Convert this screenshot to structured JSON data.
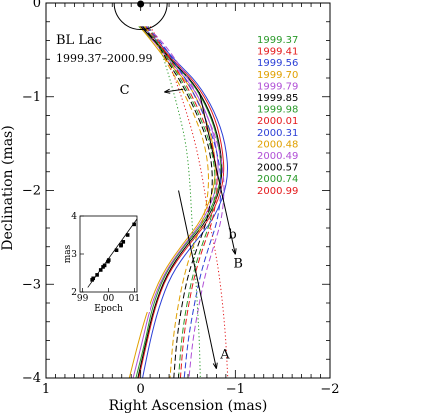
{
  "chart_data": {
    "type": "line",
    "title": "",
    "source_name": "BL Lac",
    "date_range": "1999.37–2000.99",
    "xlabel": "Right Ascension  (mas)",
    "ylabel": "Declination  (mas)",
    "xlim": [
      1,
      -2
    ],
    "ylim": [
      -4,
      0
    ],
    "x_ticks": [
      1,
      0,
      -1,
      -2
    ],
    "y_ticks": [
      0,
      -1,
      -2,
      -3,
      -4
    ],
    "grid": false,
    "legend_position": "top-right",
    "core_beam": {
      "x": 0,
      "y": 0,
      "radius": 0.28
    },
    "annotations": [
      {
        "label": "C",
        "x": 0.17,
        "y": -0.93
      },
      {
        "label": "b",
        "x": -0.97,
        "y": -2.47
      },
      {
        "label": "B",
        "x": -1.03,
        "y": -2.78
      },
      {
        "label": "A",
        "x": -0.89,
        "y": -3.75
      }
    ],
    "direction_lines": [
      {
        "name": "B",
        "from": [
          -0.62,
          -0.95
        ],
        "to": [
          -1.0,
          -2.68
        ]
      },
      {
        "name": "A",
        "from": [
          -0.4,
          -2.0
        ],
        "to": [
          -0.8,
          -3.9
        ]
      },
      {
        "name": "C",
        "from": [
          -0.45,
          -0.92
        ],
        "to": [
          -0.25,
          -0.95
        ]
      }
    ],
    "series": [
      {
        "name": "1999.37",
        "color": "#2a9a2a",
        "dash": "solid",
        "x": [
          0.02,
          -0.18,
          -0.35,
          -0.55,
          -0.72,
          -0.83,
          -0.86,
          -0.7,
          -0.45,
          -0.25,
          -0.12,
          -0.05,
          0.05
        ],
        "y": [
          -0.25,
          -0.45,
          -0.65,
          -0.85,
          -1.15,
          -1.5,
          -1.9,
          -2.3,
          -2.6,
          -2.9,
          -3.25,
          -3.6,
          -4.0
        ]
      },
      {
        "name": "1999.41",
        "color": "#e41a1c",
        "dash": "solid",
        "x": [
          0.0,
          -0.2,
          -0.38,
          -0.58,
          -0.76,
          -0.86,
          -0.89,
          -0.74,
          -0.49,
          -0.28,
          -0.15,
          -0.07,
          0.02
        ],
        "y": [
          -0.25,
          -0.45,
          -0.65,
          -0.85,
          -1.15,
          -1.5,
          -1.9,
          -2.3,
          -2.6,
          -2.9,
          -3.25,
          -3.6,
          -4.0
        ]
      },
      {
        "name": "1999.56",
        "color": "#2b3fd6",
        "dash": "solid",
        "x": [
          -0.02,
          -0.22,
          -0.4,
          -0.6,
          -0.78,
          -0.9,
          -0.93,
          -0.78,
          -0.53,
          -0.32,
          -0.19,
          -0.1,
          -0.02
        ],
        "y": [
          -0.25,
          -0.45,
          -0.65,
          -0.85,
          -1.15,
          -1.5,
          -1.9,
          -2.3,
          -2.6,
          -2.9,
          -3.25,
          -3.6,
          -4.0
        ]
      },
      {
        "name": "1999.70",
        "color": "#e0a000",
        "dash": "solid",
        "x": [
          0.01,
          -0.15,
          -0.3,
          -0.5,
          -0.66,
          -0.77,
          -0.8,
          -0.66,
          -0.42,
          -0.22,
          -0.08,
          0.02,
          0.12
        ],
        "y": [
          -0.25,
          -0.45,
          -0.65,
          -0.85,
          -1.15,
          -1.5,
          -1.9,
          -2.3,
          -2.6,
          -2.9,
          -3.25,
          -3.6,
          -4.0
        ]
      },
      {
        "name": "1999.79",
        "color": "#b04fd6",
        "dash": "solid",
        "x": [
          -0.01,
          -0.17,
          -0.33,
          -0.52,
          -0.69,
          -0.8,
          -0.83,
          -0.68,
          -0.44,
          -0.24,
          -0.1,
          -0.02,
          0.08
        ],
        "y": [
          -0.25,
          -0.45,
          -0.65,
          -0.85,
          -1.15,
          -1.5,
          -1.9,
          -2.3,
          -2.6,
          -2.9,
          -3.25,
          -3.6,
          -4.0
        ]
      },
      {
        "name": "1999.85",
        "color": "#000000",
        "dash": "solid",
        "x": [
          0.0,
          -0.19,
          -0.36,
          -0.56,
          -0.73,
          -0.84,
          -0.87,
          -0.72,
          -0.47,
          -0.27,
          -0.14,
          -0.06,
          0.03
        ],
        "y": [
          -0.25,
          -0.45,
          -0.65,
          -0.85,
          -1.15,
          -1.5,
          -1.9,
          -2.3,
          -2.6,
          -2.9,
          -3.25,
          -3.6,
          -4.0
        ]
      },
      {
        "name": "1999.98",
        "color": "#2a9a2a",
        "dash": "dashed",
        "x": [
          -0.03,
          -0.2,
          -0.32,
          -0.45,
          -0.6,
          -0.74,
          -0.8,
          -0.75,
          -0.64,
          -0.55,
          -0.48,
          -0.43,
          -0.4
        ],
        "y": [
          -0.25,
          -0.45,
          -0.65,
          -0.85,
          -1.15,
          -1.5,
          -1.9,
          -2.3,
          -2.6,
          -2.9,
          -3.25,
          -3.6,
          -4.0
        ]
      },
      {
        "name": "2000.01",
        "color": "#e41a1c",
        "dash": "dashed",
        "x": [
          -0.05,
          -0.22,
          -0.34,
          -0.47,
          -0.62,
          -0.76,
          -0.82,
          -0.77,
          -0.66,
          -0.57,
          -0.5,
          -0.45,
          -0.42
        ],
        "y": [
          -0.25,
          -0.45,
          -0.65,
          -0.85,
          -1.15,
          -1.5,
          -1.9,
          -2.3,
          -2.6,
          -2.9,
          -3.25,
          -3.6,
          -4.0
        ]
      },
      {
        "name": "2000.31",
        "color": "#2b3fd6",
        "dash": "dashed",
        "x": [
          -0.06,
          -0.24,
          -0.37,
          -0.5,
          -0.65,
          -0.79,
          -0.86,
          -0.82,
          -0.72,
          -0.63,
          -0.56,
          -0.5,
          -0.46
        ],
        "y": [
          -0.25,
          -0.45,
          -0.65,
          -0.85,
          -1.15,
          -1.5,
          -1.9,
          -2.3,
          -2.6,
          -2.9,
          -3.25,
          -3.6,
          -4.0
        ]
      },
      {
        "name": "2000.48",
        "color": "#e0a000",
        "dash": "dashed",
        "x": [
          -0.04,
          -0.18,
          -0.28,
          -0.4,
          -0.55,
          -0.68,
          -0.73,
          -0.67,
          -0.55,
          -0.46,
          -0.39,
          -0.34,
          -0.31
        ],
        "y": [
          -0.25,
          -0.45,
          -0.65,
          -0.85,
          -1.15,
          -1.5,
          -1.9,
          -2.3,
          -2.6,
          -2.9,
          -3.25,
          -3.6,
          -4.0
        ]
      },
      {
        "name": "2000.49",
        "color": "#b04fd6",
        "dash": "dashed",
        "x": [
          -0.07,
          -0.26,
          -0.4,
          -0.53,
          -0.68,
          -0.82,
          -0.89,
          -0.86,
          -0.77,
          -0.68,
          -0.61,
          -0.55,
          -0.51
        ],
        "y": [
          -0.25,
          -0.45,
          -0.65,
          -0.85,
          -1.15,
          -1.5,
          -1.9,
          -2.3,
          -2.6,
          -2.9,
          -3.25,
          -3.6,
          -4.0
        ]
      },
      {
        "name": "2000.57",
        "color": "#000000",
        "dash": "dashed",
        "x": [
          -0.02,
          -0.19,
          -0.3,
          -0.43,
          -0.58,
          -0.72,
          -0.77,
          -0.71,
          -0.6,
          -0.5,
          -0.43,
          -0.38,
          -0.35
        ],
        "y": [
          -0.25,
          -0.45,
          -0.65,
          -0.85,
          -1.15,
          -1.5,
          -1.9,
          -2.3,
          -2.6,
          -2.9,
          -3.25,
          -3.6,
          -4.0
        ]
      },
      {
        "name": "2000.74",
        "color": "#2a9a2a",
        "dash": "dotted",
        "x": [
          -0.08,
          -0.2,
          -0.26,
          -0.32,
          -0.4,
          -0.48,
          -0.52,
          -0.54,
          -0.56,
          -0.58,
          -0.6,
          -0.62,
          -0.63
        ],
        "y": [
          -0.25,
          -0.45,
          -0.65,
          -0.85,
          -1.15,
          -1.5,
          -1.9,
          -2.3,
          -2.6,
          -2.9,
          -3.25,
          -3.6,
          -4.0
        ]
      },
      {
        "name": "2000.99",
        "color": "#e41a1c",
        "dash": "dotted",
        "x": [
          -0.1,
          -0.22,
          -0.3,
          -0.38,
          -0.48,
          -0.58,
          -0.66,
          -0.72,
          -0.78,
          -0.83,
          -0.87,
          -0.9,
          -0.92
        ],
        "y": [
          -0.25,
          -0.45,
          -0.65,
          -0.85,
          -1.15,
          -1.5,
          -1.9,
          -2.3,
          -2.6,
          -2.9,
          -3.25,
          -3.6,
          -4.0
        ]
      }
    ],
    "inset": {
      "type": "scatter",
      "xlabel": "Epoch",
      "ylabel": "mas",
      "xlim": [
        98.9,
        101.1
      ],
      "ylim": [
        2,
        4
      ],
      "x_ticks": [
        99,
        100,
        101
      ],
      "x_tick_labels": [
        "99",
        "00",
        "01"
      ],
      "y_ticks": [
        2,
        3,
        4
      ],
      "x": [
        99.37,
        99.41,
        99.56,
        99.7,
        99.79,
        99.85,
        99.98,
        100.01,
        100.31,
        100.48,
        100.49,
        100.57,
        100.74,
        100.99
      ],
      "y": [
        2.32,
        2.36,
        2.45,
        2.58,
        2.66,
        2.7,
        2.8,
        2.84,
        3.1,
        3.22,
        3.24,
        3.32,
        3.5,
        3.78
      ],
      "fit": {
        "x": [
          99.2,
          101.1
        ],
        "y": [
          2.12,
          3.92
        ]
      }
    }
  }
}
